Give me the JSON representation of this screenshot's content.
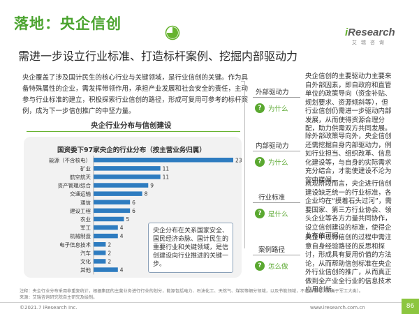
{
  "header": {
    "title": "落地：央企信创",
    "subtitle": "需进一步设立行业标准、打造标杆案例、挖掘内部驱动力"
  },
  "brand": {
    "name_i": "i",
    "name_rest": "Research",
    "sub": "艾瑞咨询"
  },
  "intro": "央企覆盖了涉及国计民生的核心行业与关键领域，是行业信创的关键。作为具备特殊属性的企业，需发挥带领作用，承担产业发展和社会安全的责任，主动参与行业标准的建立，积极探索行业信创的路径，形成可复用可参考的标杆案例，成为下一步信创推广的中坚力量。",
  "chart_heading": "央企行业分布与信创建设",
  "callout": "央企分布在关系国家安全、国民经济命脉、国计民生的重要行业和关键领域，是信创建设向行业推进的关键一步。",
  "flow": {
    "items": [
      {
        "label": "外部驱动力",
        "question": "为什么",
        "text": "央企信创的主要驱动力主要来自外部因素，即自政府和直管单位的政策导向（资金补贴、规划要求、资源倾斜等），但行业信创仍需进一步驱动内部发展，从而使得资源合理分配，助力供需双方共同发展。"
      },
      {
        "label": "内部驱动力",
        "question": "为什么",
        "text": "除外部政策导向外，央企信创还需挖掘自身内部驱动力，例如行业担当、组织改革、信息化建设等，与自身的实际需求充分结合，才能使建设不沦为空中楼阁。"
      },
      {
        "label": "行业标准",
        "question": "是什么",
        "text": "就现阶段而言，央企进行信创建设缺乏统一的行业标准，各企业均在“摸着石头过河”，需要国家、第三方行业协会、领头企业等各方力量共同协作，设立信创建设的标准，使得企业有依可据。"
      },
      {
        "label": "案例路径",
        "question": "怎么做",
        "text": "央企中进行信创的过程中需注意自身经验路径的反思和探讨，形成具有复用价值的方法论，从而帮助信创标准在央企外行业信创的推广，从而真正做到全产业全行业的信息技术应用创新。"
      }
    ]
  },
  "note": "注释：央企行业分布采用非重复统计，根据集团的主营业务进行行业的划分，能源包括电力、石油化工、天然气、煤炭等细分领域，以及节能领域，不包含核电（归类于军工大类）。\n来源：艾瑞咨询研究院自主研究及绘制。",
  "footer": {
    "copyright": "©2021.7 iResearch Inc.",
    "site": "www.iresearch.com.cn",
    "page": "86"
  },
  "colors": {
    "green": "#66b32e",
    "bar": "#2e7cc0",
    "badge": "#5aa830"
  },
  "chart_data": {
    "type": "bar",
    "orientation": "horizontal",
    "title": "国资委下97家央企的行业分布（按主营业务归属）",
    "categories": [
      "能源（不含核电）",
      "矿业",
      "航空航天",
      "资产管理/综合",
      "交通运输",
      "通信",
      "建设工程",
      "农业",
      "军工",
      "机械制造",
      "电子信息技术",
      "汽车",
      "文化",
      "其他"
    ],
    "values": [
      23,
      11,
      11,
      9,
      8,
      6,
      6,
      5,
      4,
      4,
      2,
      2,
      2,
      4
    ],
    "xlim": [
      0,
      23
    ],
    "data_labels": true,
    "grid": false
  }
}
